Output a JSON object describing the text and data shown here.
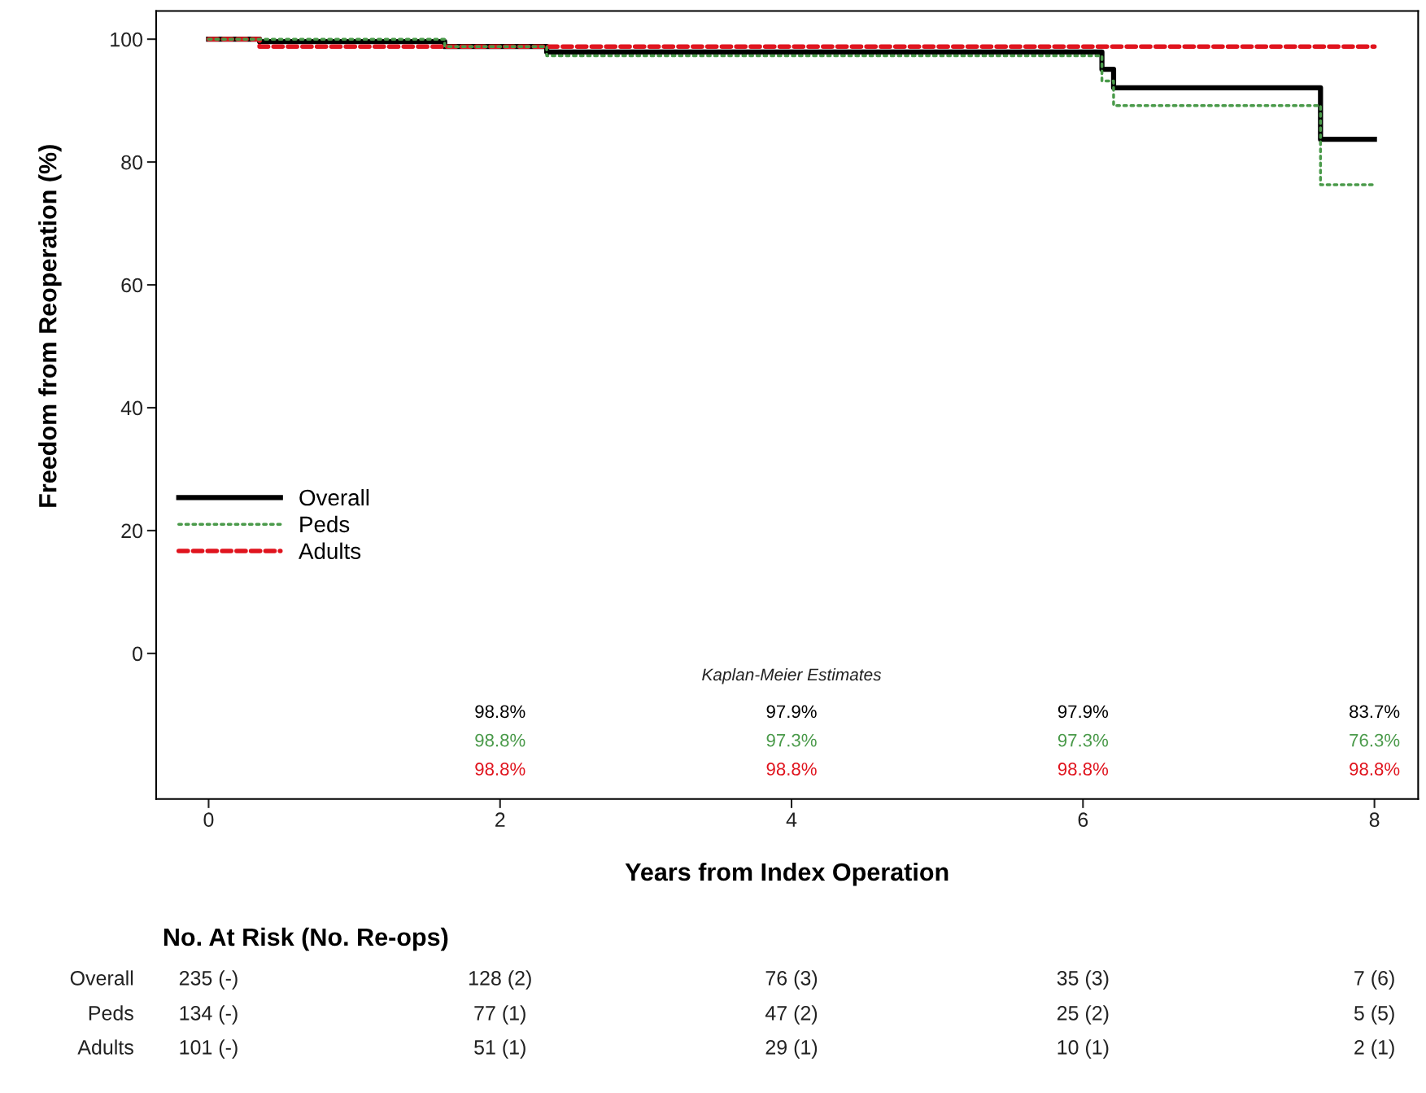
{
  "chart_data": {
    "type": "step",
    "xlabel": "Years from Index Operation",
    "ylabel": "Freedom from Reoperation (%)",
    "xlim": [
      -0.36,
      8.3
    ],
    "ylim": [
      -23.7,
      104.6
    ],
    "xticks": [
      0,
      2,
      4,
      6,
      8
    ],
    "yticks": [
      0,
      20,
      40,
      60,
      80,
      100
    ],
    "grid": false,
    "legend": "bottom left",
    "series": [
      {
        "name": "Overall",
        "color": "#000000",
        "line_style": "solid",
        "x": [
          0,
          0.35,
          1.62,
          2.32,
          6.13,
          6.21,
          7.63,
          8.0
        ],
        "values": [
          100,
          99.6,
          98.8,
          97.9,
          95.1,
          92.1,
          83.7,
          83.7
        ]
      },
      {
        "name": "Peds",
        "color": "#4a9a4a",
        "line_style": "dotted",
        "x": [
          0,
          1.62,
          2.32,
          6.13,
          6.21,
          7.63,
          8.0
        ],
        "values": [
          100,
          98.8,
          97.3,
          93.2,
          89.2,
          76.3,
          76.3
        ]
      },
      {
        "name": "Adults",
        "color": "#e0141e",
        "line_style": "dashed",
        "x": [
          0,
          0.35,
          8.0
        ],
        "values": [
          100,
          98.8,
          98.8
        ]
      }
    ],
    "annotations": [
      "Kaplan-Meier Estimates",
      "98.8%",
      "97.9%",
      "97.9%",
      "83.7%",
      "98.8%",
      "97.3%",
      "97.3%",
      "76.3%",
      "98.8%",
      "98.8%",
      "98.8%",
      "98.8%",
      "No. At Risk (No. Re-ops)",
      "Overall",
      "Peds",
      "Adults",
      "235 (-)",
      "128 (2)",
      "76 (3)",
      "35 (3)",
      "7 (6)",
      "134 (-)",
      "77 (1)",
      "47 (2)",
      "25 (2)",
      "5 (5)",
      "101 (-)",
      "51 (1)",
      "29 (1)",
      "10 (1)",
      "2 (1)"
    ]
  }
}
